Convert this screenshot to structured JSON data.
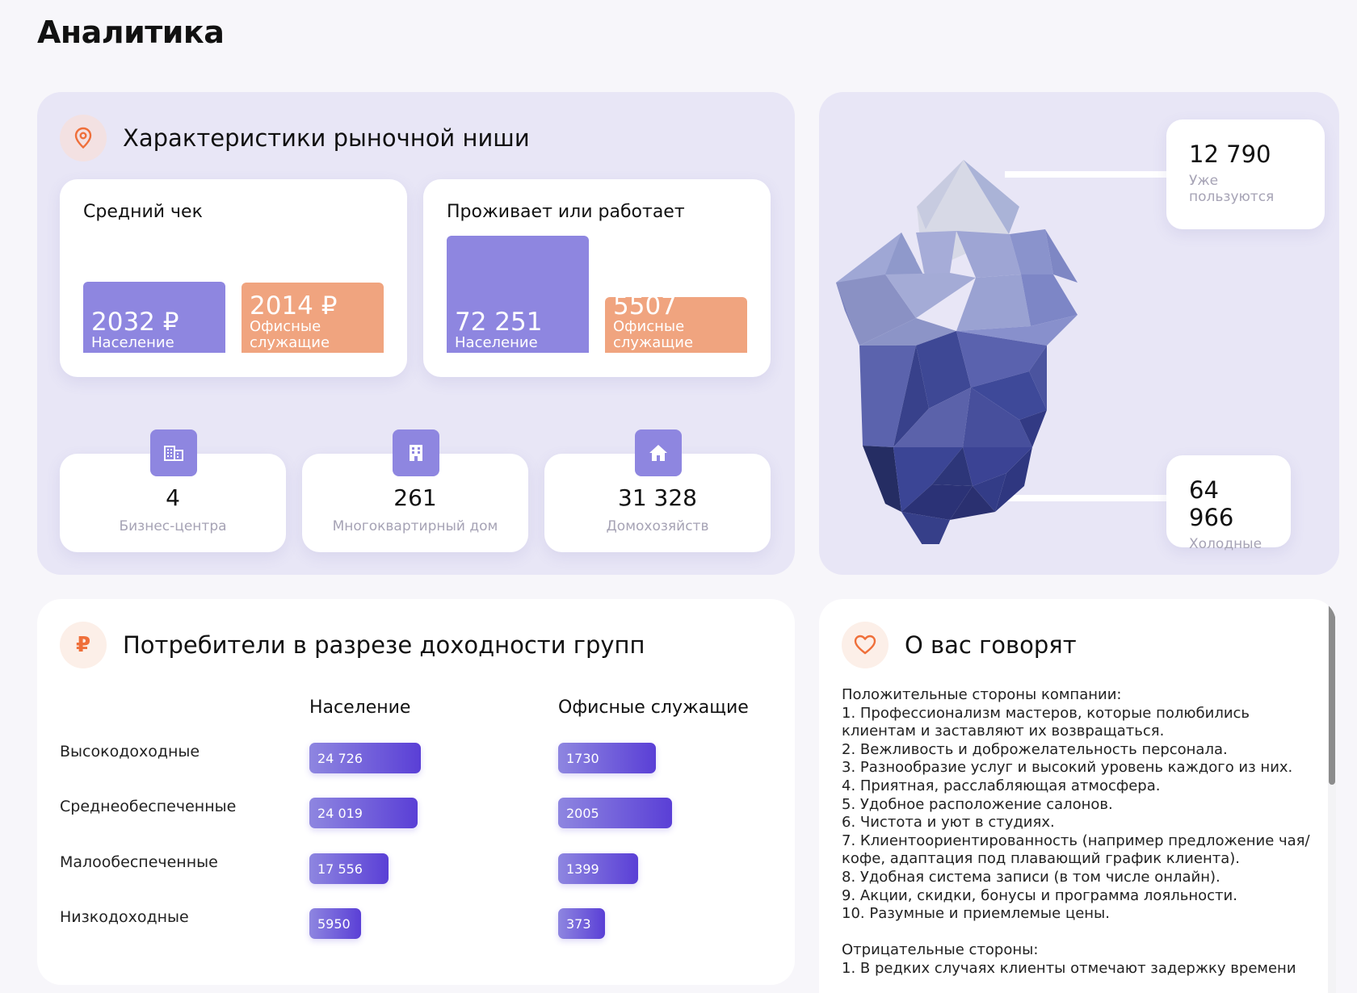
{
  "page": {
    "title": "Аналитика"
  },
  "niche": {
    "title": "Характеристики рыночной ниши",
    "icon": "location-pin-icon",
    "avg_check": {
      "title": "Средний чек",
      "population": {
        "value": "2032 ₽",
        "label": "Население"
      },
      "office": {
        "value": "2014 ₽",
        "label": "Офисные служащие"
      }
    },
    "residents": {
      "title": "Проживает или работает",
      "population": {
        "value": "72 251",
        "label": "Население"
      },
      "office": {
        "value": "5507",
        "label": "Офисные служащие"
      }
    },
    "stats": [
      {
        "value": "4",
        "label": "Бизнес-центра",
        "icon": "office-building-icon"
      },
      {
        "value": "261",
        "label": "Многоквартирный дом",
        "icon": "apartment-building-icon"
      },
      {
        "value": "31 328",
        "label": "Домохозяйств",
        "icon": "house-icon"
      }
    ]
  },
  "iceberg": {
    "using": {
      "value": "12 790",
      "label": "Уже пользуются"
    },
    "cold": {
      "value": "64 966",
      "label": "Холодные"
    }
  },
  "consumers": {
    "title": "Потребители в разрезе доходности групп",
    "icon": "ruble-icon",
    "columns": [
      "Население",
      "Офисные служащие"
    ],
    "rows": [
      {
        "label": "Высокодоходные",
        "population": "24 726",
        "office": "1730"
      },
      {
        "label": "Среднеобеспеченные",
        "population": "24 019",
        "office": "2005"
      },
      {
        "label": "Малообеспеченные",
        "population": "17 556",
        "office": "1399"
      },
      {
        "label": "Низкодоходные",
        "population": "5950",
        "office": "373"
      }
    ],
    "population_fill": [
      1.0,
      0.97,
      0.71,
      0.24
    ],
    "office_fill": [
      0.86,
      1.0,
      0.7,
      0.19
    ]
  },
  "reviews": {
    "title": "О вас говорят",
    "icon": "heart-icon",
    "text": "Положительные стороны компании:\n1. Профессионализм мастеров, которые полюбились клиентам и заставляют их возвращаться.\n2. Вежливость и доброжелательность персонала.\n3. Разнообразие услуг и высокий уровень каждого из них.\n4. Приятная, расслабляющая атмосфера.\n5. Удобное расположение салонов.\n6. Чистота и уют в студиях.\n7. Клиентоориентированность (например предложение чая/кофе, адаптация под плавающий график клиента).\n8. Удобная система записи (в том числе онлайн).\n9. Акции, скидки, бонусы и программа лояльности.\n10. Разумные и приемлемые цены.\n\nОтрицательные стороны:\n1. В редких случаях клиенты отмечают задержку времени"
  },
  "colors": {
    "accent_purple": "#8e86e0",
    "accent_orange": "#f0a47f",
    "icon_orange": "#ef6f3a",
    "panel_bg": "#e8e6f6"
  }
}
